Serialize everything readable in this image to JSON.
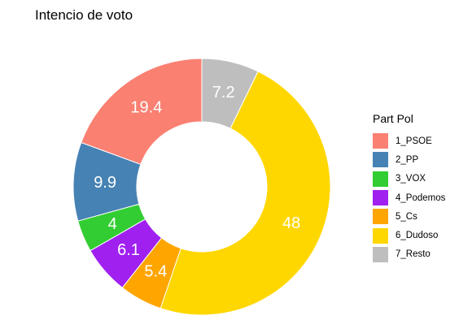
{
  "chart_data": {
    "type": "pie",
    "subtype": "donut",
    "title": "Intencio de voto",
    "legend_title": "Part Pol",
    "legend_position": "right",
    "categories": [
      "1_PSOE",
      "2_PP",
      "3_VOX",
      "4_Podemos",
      "5_Cs",
      "6_Dudoso",
      "7_Resto"
    ],
    "values": [
      19.4,
      9.9,
      4,
      6.1,
      5.4,
      48,
      7.2
    ],
    "data_labels": [
      "19.4",
      "9.9",
      "4",
      "6.1",
      "5.4",
      "48",
      "7.2"
    ],
    "colors": [
      "#FA8072",
      "#4682B4",
      "#32CD32",
      "#A020F0",
      "#FFA500",
      "#FFD700",
      "#BEBEBE"
    ],
    "label_color": "#ffffff"
  }
}
